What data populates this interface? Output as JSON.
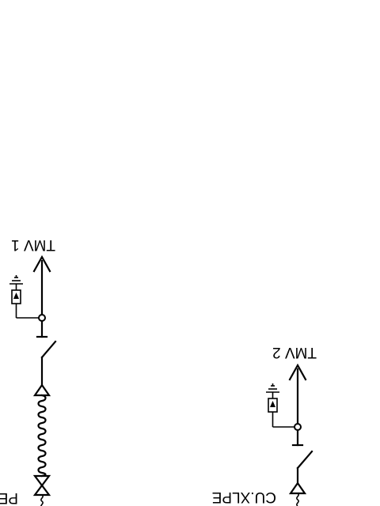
{
  "labels": {
    "tmv1": "TMV 1",
    "tmv2": "TMV 2",
    "cable_left": "PE",
    "cable_right": "CU.XLPE"
  },
  "colors": {
    "line": "#000000",
    "background": "#ffffff"
  },
  "icons": [
    "arrow-up-icon",
    "surge-arrester-icon",
    "ground-icon",
    "junction-dot-icon",
    "switch-icon",
    "triangle-terminal-icon",
    "cable-coil-icon"
  ]
}
